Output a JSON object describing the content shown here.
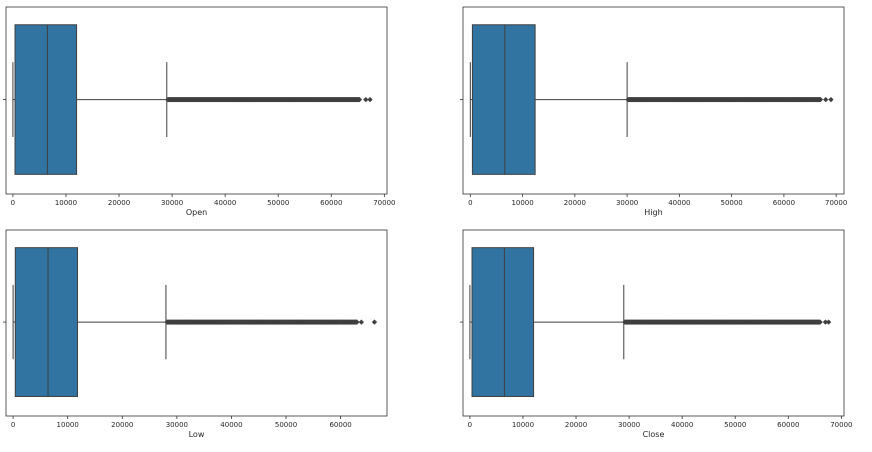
{
  "chart_data": [
    {
      "type": "boxplot",
      "xlabel": "Open",
      "xlim": [
        -1300,
        70500
      ],
      "ticks": [
        0,
        10000,
        20000,
        30000,
        40000,
        50000,
        60000,
        70000
      ],
      "tick_labels": [
        "0",
        "10000",
        "20000",
        "30000",
        "40000",
        "50000",
        "60000",
        "70000"
      ],
      "box": {
        "whisker_low": 0,
        "q1": 400,
        "median": 6500,
        "q3": 12000,
        "whisker_high": 29000
      },
      "outliers": {
        "min": 29200,
        "max": 65300,
        "extra": [
          66500,
          67300
        ]
      },
      "colors": {
        "box": "#3274a1",
        "line": "#3f3f3f"
      }
    },
    {
      "type": "boxplot",
      "xlabel": "High",
      "xlim": [
        -1400,
        71500
      ],
      "ticks": [
        0,
        10000,
        20000,
        30000,
        40000,
        50000,
        60000,
        70000
      ],
      "tick_labels": [
        "0",
        "10000",
        "20000",
        "30000",
        "40000",
        "50000",
        "60000",
        "70000"
      ],
      "box": {
        "whisker_low": 0,
        "q1": 400,
        "median": 6600,
        "q3": 12400,
        "whisker_high": 30000
      },
      "outliers": {
        "min": 30200,
        "max": 67000,
        "extra": [
          68000,
          69000
        ]
      },
      "colors": {
        "box": "#3274a1",
        "line": "#3f3f3f"
      }
    },
    {
      "type": "boxplot",
      "xlabel": "Low",
      "xlim": [
        -1300,
        68500
      ],
      "ticks": [
        0,
        10000,
        20000,
        30000,
        40000,
        50000,
        60000
      ],
      "tick_labels": [
        "0",
        "10000",
        "20000",
        "30000",
        "40000",
        "50000",
        "60000"
      ],
      "box": {
        "whisker_low": 0,
        "q1": 400,
        "median": 6400,
        "q3": 11800,
        "whisker_high": 28000
      },
      "outliers": {
        "min": 28200,
        "max": 63000,
        "extra": [
          63800,
          66200
        ]
      },
      "colors": {
        "box": "#3274a1",
        "line": "#3f3f3f"
      }
    },
    {
      "type": "boxplot",
      "xlabel": "Close",
      "xlim": [
        -1300,
        70500
      ],
      "ticks": [
        0,
        10000,
        20000,
        30000,
        40000,
        50000,
        60000,
        70000
      ],
      "tick_labels": [
        "0",
        "10000",
        "20000",
        "30000",
        "40000",
        "50000",
        "60000",
        "70000"
      ],
      "box": {
        "whisker_low": 0,
        "q1": 400,
        "median": 6500,
        "q3": 12000,
        "whisker_high": 29000
      },
      "outliers": {
        "min": 29200,
        "max": 66000,
        "extra": [
          67000,
          67600
        ]
      },
      "colors": {
        "box": "#3274a1",
        "line": "#3f3f3f"
      }
    }
  ]
}
